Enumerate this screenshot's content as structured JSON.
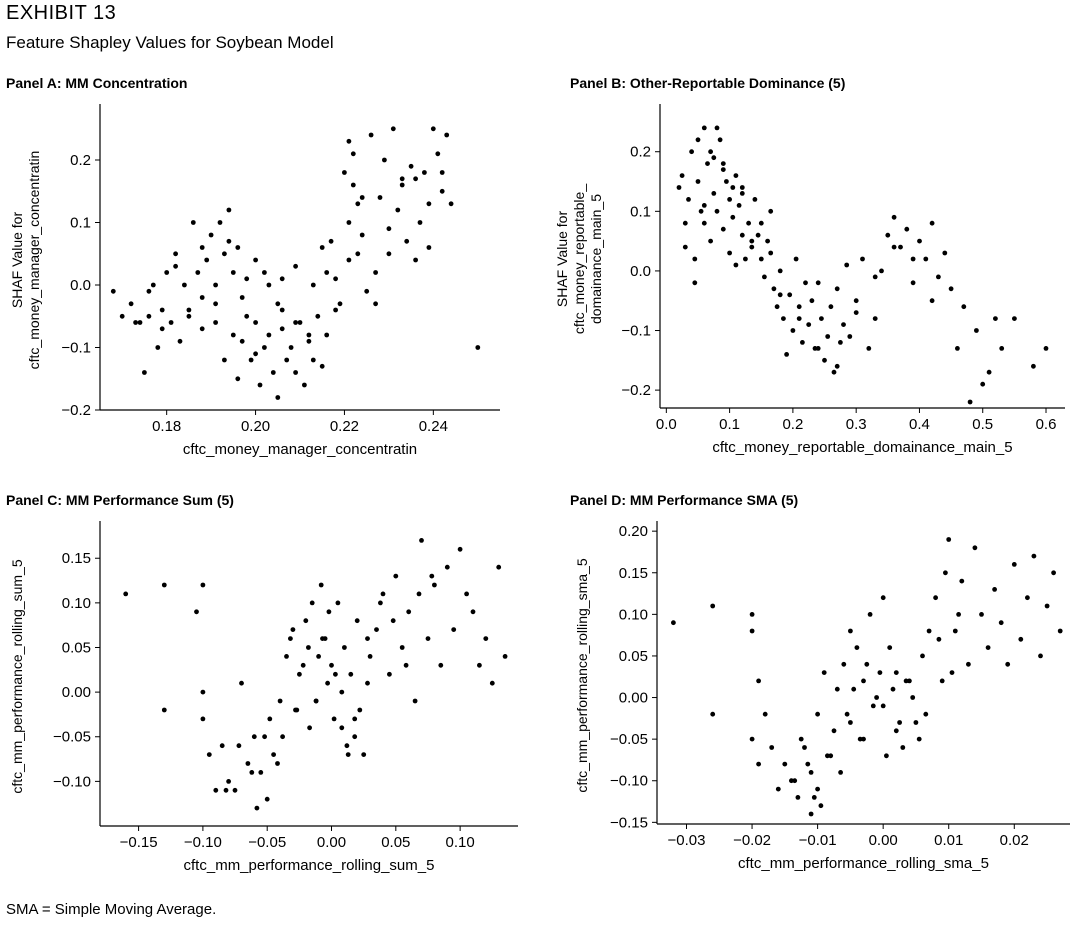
{
  "exhibit": {
    "label": "EXHIBIT 13",
    "title": "Feature Shapley Values for Soybean Model"
  },
  "footnote": "SMA = Simple Moving Average.",
  "chart_data": [
    {
      "type": "scatter",
      "panel_title": "Panel A: MM Concentration",
      "xlabel": "cftc_money_manager_concentratin",
      "ylabel": [
        "SHAF Value for",
        "cftc_money_manager_concentratin"
      ],
      "xlim": [
        0.165,
        0.255
      ],
      "ylim": [
        -0.2,
        0.28
      ],
      "xticks": [
        0.18,
        0.2,
        0.22,
        0.24
      ],
      "xtick_labels": [
        "0.18",
        "0.20",
        "0.22",
        "0.24"
      ],
      "yticks": [
        -0.2,
        -0.1,
        0.0,
        0.1,
        0.2
      ],
      "ytick_labels": [
        "−0.2",
        "−0.1",
        "0.0",
        "0.1",
        "0.2"
      ],
      "x": [
        0.168,
        0.17,
        0.172,
        0.174,
        0.175,
        0.176,
        0.177,
        0.178,
        0.179,
        0.18,
        0.181,
        0.182,
        0.183,
        0.184,
        0.185,
        0.186,
        0.187,
        0.188,
        0.188,
        0.189,
        0.19,
        0.191,
        0.191,
        0.192,
        0.193,
        0.193,
        0.194,
        0.195,
        0.195,
        0.196,
        0.196,
        0.197,
        0.198,
        0.198,
        0.199,
        0.2,
        0.2,
        0.201,
        0.202,
        0.202,
        0.203,
        0.204,
        0.205,
        0.205,
        0.206,
        0.206,
        0.207,
        0.208,
        0.209,
        0.209,
        0.21,
        0.211,
        0.212,
        0.213,
        0.213,
        0.214,
        0.215,
        0.216,
        0.216,
        0.217,
        0.218,
        0.219,
        0.22,
        0.221,
        0.221,
        0.222,
        0.222,
        0.223,
        0.223,
        0.224,
        0.225,
        0.226,
        0.227,
        0.228,
        0.229,
        0.23,
        0.231,
        0.232,
        0.233,
        0.234,
        0.235,
        0.236,
        0.237,
        0.238,
        0.239,
        0.24,
        0.241,
        0.242,
        0.243,
        0.244,
        0.25,
        0.173,
        0.176,
        0.179,
        0.182,
        0.185,
        0.188,
        0.191,
        0.194,
        0.197,
        0.2,
        0.203,
        0.206,
        0.209,
        0.212,
        0.215,
        0.218,
        0.221,
        0.224,
        0.227,
        0.23,
        0.233,
        0.236,
        0.239,
        0.242
      ],
      "y": [
        -0.01,
        -0.05,
        -0.03,
        -0.06,
        -0.14,
        -0.05,
        0.0,
        -0.1,
        -0.04,
        0.02,
        -0.06,
        0.05,
        -0.09,
        0.0,
        -0.04,
        0.1,
        0.02,
        -0.07,
        0.06,
        0.04,
        0.08,
        -0.06,
        0.0,
        0.1,
        0.05,
        -0.12,
        0.12,
        0.02,
        -0.08,
        0.06,
        -0.15,
        -0.09,
        -0.05,
        0.01,
        -0.12,
        -0.06,
        0.04,
        -0.16,
        -0.1,
        0.02,
        -0.08,
        -0.14,
        -0.18,
        -0.03,
        -0.07,
        0.01,
        -0.12,
        -0.1,
        -0.14,
        0.03,
        -0.06,
        -0.16,
        -0.09,
        -0.12,
        0.0,
        -0.05,
        0.06,
        0.02,
        -0.08,
        0.07,
        0.01,
        -0.03,
        0.18,
        0.23,
        0.1,
        0.16,
        0.21,
        0.05,
        0.13,
        0.08,
        -0.01,
        0.24,
        0.02,
        0.14,
        0.2,
        0.05,
        0.25,
        0.12,
        0.17,
        0.07,
        0.19,
        0.17,
        0.1,
        0.18,
        0.13,
        0.25,
        0.21,
        0.15,
        0.24,
        0.13,
        -0.1,
        -0.06,
        -0.01,
        -0.07,
        0.03,
        -0.05,
        -0.02,
        -0.03,
        0.07,
        -0.02,
        -0.11,
        0.0,
        -0.04,
        -0.06,
        -0.08,
        -0.13,
        -0.04,
        0.04,
        0.14,
        -0.03,
        0.09,
        0.16,
        0.04,
        0.06,
        0.18
      ]
    },
    {
      "type": "scatter",
      "panel_title": "Panel B: Other-Reportable Dominance (5)",
      "xlabel": "cftc_money_reportable_domainance_main_5",
      "ylabel": [
        "SHAF Value for",
        "cftc_money_reportable_",
        "domainance_main_5"
      ],
      "xlim": [
        -0.01,
        0.63
      ],
      "ylim": [
        -0.23,
        0.27
      ],
      "xticks": [
        0.0,
        0.1,
        0.2,
        0.3,
        0.4,
        0.5,
        0.6
      ],
      "xtick_labels": [
        "0.0",
        "0.1",
        "0.2",
        "0.3",
        "0.4",
        "0.5",
        "0.6"
      ],
      "yticks": [
        -0.2,
        -0.1,
        0.0,
        0.1,
        0.2
      ],
      "ytick_labels": [
        "−0.2",
        "−0.1",
        "0.0",
        "0.1",
        "0.2"
      ],
      "x": [
        0.02,
        0.025,
        0.03,
        0.035,
        0.04,
        0.045,
        0.05,
        0.05,
        0.055,
        0.06,
        0.06,
        0.065,
        0.07,
        0.07,
        0.075,
        0.08,
        0.08,
        0.085,
        0.09,
        0.09,
        0.095,
        0.1,
        0.1,
        0.105,
        0.11,
        0.11,
        0.115,
        0.12,
        0.12,
        0.125,
        0.13,
        0.135,
        0.14,
        0.145,
        0.15,
        0.155,
        0.16,
        0.165,
        0.17,
        0.175,
        0.18,
        0.185,
        0.19,
        0.195,
        0.2,
        0.205,
        0.21,
        0.215,
        0.22,
        0.225,
        0.23,
        0.235,
        0.24,
        0.245,
        0.25,
        0.255,
        0.26,
        0.265,
        0.27,
        0.275,
        0.28,
        0.285,
        0.29,
        0.3,
        0.31,
        0.32,
        0.33,
        0.34,
        0.35,
        0.36,
        0.37,
        0.38,
        0.39,
        0.4,
        0.41,
        0.42,
        0.43,
        0.44,
        0.45,
        0.46,
        0.47,
        0.48,
        0.49,
        0.5,
        0.51,
        0.52,
        0.53,
        0.55,
        0.58,
        0.6,
        0.03,
        0.06,
        0.09,
        0.12,
        0.15,
        0.18,
        0.21,
        0.24,
        0.27,
        0.3,
        0.33,
        0.36,
        0.39,
        0.42,
        0.045,
        0.075,
        0.105,
        0.135,
        0.165
      ],
      "y": [
        0.14,
        0.16,
        0.08,
        0.12,
        0.2,
        0.02,
        0.22,
        0.15,
        0.1,
        0.24,
        0.08,
        0.18,
        0.2,
        0.05,
        0.13,
        0.24,
        0.1,
        0.22,
        0.17,
        0.07,
        0.15,
        0.12,
        0.03,
        0.09,
        0.16,
        0.01,
        0.11,
        0.06,
        0.14,
        0.02,
        0.08,
        0.04,
        0.12,
        0.06,
        0.02,
        -0.01,
        0.05,
        0.03,
        -0.03,
        -0.06,
        0.0,
        -0.08,
        -0.14,
        -0.04,
        -0.1,
        0.02,
        -0.06,
        -0.12,
        -0.02,
        -0.09,
        -0.05,
        -0.13,
        -0.02,
        -0.08,
        -0.15,
        -0.11,
        -0.06,
        -0.17,
        -0.03,
        -0.12,
        -0.09,
        0.01,
        -0.11,
        -0.05,
        0.02,
        -0.13,
        -0.08,
        0.0,
        0.06,
        0.09,
        0.04,
        0.07,
        -0.02,
        0.05,
        0.02,
        0.08,
        -0.01,
        0.03,
        -0.03,
        -0.13,
        -0.06,
        -0.22,
        -0.1,
        -0.19,
        -0.17,
        -0.08,
        -0.13,
        -0.08,
        -0.16,
        -0.13,
        0.04,
        0.11,
        0.18,
        0.13,
        0.08,
        -0.04,
        -0.08,
        -0.13,
        -0.16,
        -0.07,
        -0.01,
        0.04,
        0.02,
        -0.05,
        -0.02,
        0.19,
        0.14,
        0.05,
        0.1
      ]
    },
    {
      "type": "scatter",
      "panel_title": "Panel C: MM Performance Sum (5)",
      "xlabel": "cftc_mm_performance_rolling_sum_5",
      "ylabel": [
        "cftc_mm_performance_rolling_sum_5"
      ],
      "xlim": [
        -0.18,
        0.145
      ],
      "ylim": [
        -0.15,
        0.185
      ],
      "xticks": [
        -0.15,
        -0.1,
        -0.05,
        0.0,
        0.05,
        0.1
      ],
      "xtick_labels": [
        "−0.15",
        "−0.10",
        "−0.05",
        "0.00",
        "0.05",
        "0.10"
      ],
      "yticks": [
        -0.1,
        -0.05,
        0.0,
        0.05,
        0.1,
        0.15
      ],
      "ytick_labels": [
        "−0.10",
        "−0.05",
        "0.00",
        "0.05",
        "0.10",
        "0.15"
      ],
      "x": [
        -0.16,
        -0.13,
        -0.13,
        -0.105,
        -0.1,
        -0.1,
        -0.1,
        -0.095,
        -0.09,
        -0.085,
        -0.08,
        -0.075,
        -0.07,
        -0.065,
        -0.06,
        -0.058,
        -0.055,
        -0.05,
        -0.048,
        -0.045,
        -0.04,
        -0.038,
        -0.035,
        -0.03,
        -0.028,
        -0.025,
        -0.02,
        -0.018,
        -0.015,
        -0.012,
        -0.01,
        -0.008,
        -0.005,
        -0.003,
        0.0,
        0.002,
        0.005,
        0.008,
        0.01,
        0.012,
        0.015,
        0.018,
        0.02,
        0.022,
        0.025,
        0.028,
        0.03,
        0.035,
        0.04,
        0.045,
        0.05,
        0.055,
        0.06,
        0.065,
        0.07,
        0.075,
        0.08,
        0.085,
        0.09,
        0.095,
        0.1,
        0.105,
        0.11,
        0.115,
        0.12,
        0.125,
        0.13,
        0.135,
        -0.052,
        -0.042,
        -0.032,
        -0.022,
        -0.012,
        -0.002,
        0.008,
        0.018,
        0.028,
        0.038,
        0.048,
        0.058,
        0.068,
        0.078,
        -0.062,
        -0.072,
        -0.082,
        0.013,
        0.003,
        -0.007,
        -0.017,
        -0.027
      ],
      "y": [
        0.11,
        0.12,
        -0.02,
        0.09,
        0.0,
        0.12,
        -0.03,
        -0.07,
        -0.11,
        -0.06,
        -0.1,
        -0.11,
        0.01,
        -0.08,
        -0.05,
        -0.13,
        -0.09,
        -0.12,
        -0.03,
        -0.07,
        -0.01,
        -0.05,
        0.04,
        0.07,
        -0.02,
        0.02,
        0.08,
        0.05,
        0.1,
        -0.01,
        0.04,
        0.12,
        0.06,
        0.01,
        0.03,
        -0.03,
        0.1,
        -0.04,
        0.05,
        -0.06,
        0.02,
        -0.05,
        0.08,
        -0.02,
        -0.07,
        0.01,
        0.04,
        0.07,
        0.11,
        0.02,
        0.13,
        0.05,
        0.09,
        -0.01,
        0.17,
        0.06,
        0.12,
        0.03,
        0.14,
        0.07,
        0.16,
        0.11,
        0.09,
        0.03,
        0.06,
        0.01,
        0.14,
        0.04,
        -0.05,
        -0.08,
        0.06,
        0.03,
        -0.01,
        0.09,
        0.0,
        -0.03,
        0.06,
        0.1,
        0.08,
        0.03,
        0.11,
        0.13,
        -0.09,
        -0.06,
        -0.11,
        -0.07,
        0.02,
        0.06,
        -0.04,
        -0.02
      ]
    },
    {
      "type": "scatter",
      "panel_title": "Panel D: MM Performance SMA (5)",
      "xlabel": "cftc_mm_performance_rolling_sma_5",
      "ylabel": [
        "cftc_mm_performance_rolling_sma_5"
      ],
      "xlim": [
        -0.0345,
        0.0285
      ],
      "ylim": [
        -0.152,
        0.205
      ],
      "xticks": [
        -0.03,
        -0.02,
        -0.01,
        0.0,
        0.01,
        0.02
      ],
      "xtick_labels": [
        "−0.03",
        "−0.02",
        "−0.01",
        "0.00",
        "0.01",
        "0.02"
      ],
      "yticks": [
        -0.15,
        -0.1,
        -0.05,
        0.0,
        0.05,
        0.1,
        0.15,
        0.2
      ],
      "ytick_labels": [
        "−0.15",
        "−0.10",
        "−0.05",
        "0.00",
        "0.05",
        "0.10",
        "0.15",
        "0.20"
      ],
      "x": [
        -0.032,
        -0.026,
        -0.026,
        -0.02,
        -0.02,
        -0.02,
        -0.019,
        -0.019,
        -0.018,
        -0.017,
        -0.016,
        -0.015,
        -0.014,
        -0.013,
        -0.012,
        -0.011,
        -0.011,
        -0.01,
        -0.01,
        -0.009,
        -0.008,
        -0.007,
        -0.006,
        -0.005,
        -0.005,
        -0.004,
        -0.003,
        -0.003,
        -0.002,
        -0.001,
        0.0,
        0.0,
        0.001,
        0.002,
        0.002,
        0.003,
        0.004,
        0.005,
        0.006,
        0.007,
        0.008,
        0.009,
        0.01,
        0.011,
        0.012,
        0.013,
        0.014,
        0.015,
        0.016,
        0.017,
        0.018,
        0.019,
        0.02,
        0.021,
        0.022,
        0.023,
        0.024,
        0.025,
        0.026,
        0.027,
        -0.0095,
        -0.0085,
        -0.0075,
        -0.0065,
        -0.0055,
        -0.0045,
        -0.0035,
        -0.0025,
        -0.0015,
        -0.0005,
        0.0005,
        0.0015,
        0.0025,
        0.0035,
        0.0045,
        0.0055,
        0.0065,
        -0.0135,
        -0.0125,
        -0.0115,
        -0.0105,
        0.0085,
        0.0095,
        0.0105,
        0.0115
      ],
      "y": [
        0.09,
        0.11,
        -0.02,
        0.1,
        0.08,
        -0.05,
        0.02,
        -0.08,
        -0.02,
        -0.06,
        -0.11,
        -0.08,
        -0.1,
        -0.12,
        -0.06,
        -0.14,
        -0.09,
        -0.11,
        -0.02,
        0.03,
        -0.07,
        0.01,
        0.04,
        0.08,
        -0.03,
        0.06,
        0.02,
        -0.05,
        0.1,
        0.0,
        0.12,
        -0.01,
        0.06,
        -0.04,
        0.03,
        -0.06,
        0.02,
        -0.03,
        0.05,
        0.08,
        0.12,
        0.02,
        0.19,
        0.08,
        0.14,
        0.04,
        0.18,
        0.1,
        0.06,
        0.13,
        0.09,
        0.04,
        0.16,
        0.07,
        0.12,
        0.17,
        0.05,
        0.11,
        0.15,
        0.08,
        -0.13,
        -0.07,
        -0.04,
        -0.09,
        -0.02,
        0.01,
        -0.05,
        0.04,
        -0.01,
        0.03,
        -0.07,
        0.01,
        -0.03,
        0.02,
        0.0,
        -0.05,
        -0.02,
        -0.1,
        -0.05,
        -0.08,
        -0.12,
        0.07,
        0.15,
        0.03,
        0.1
      ]
    }
  ]
}
